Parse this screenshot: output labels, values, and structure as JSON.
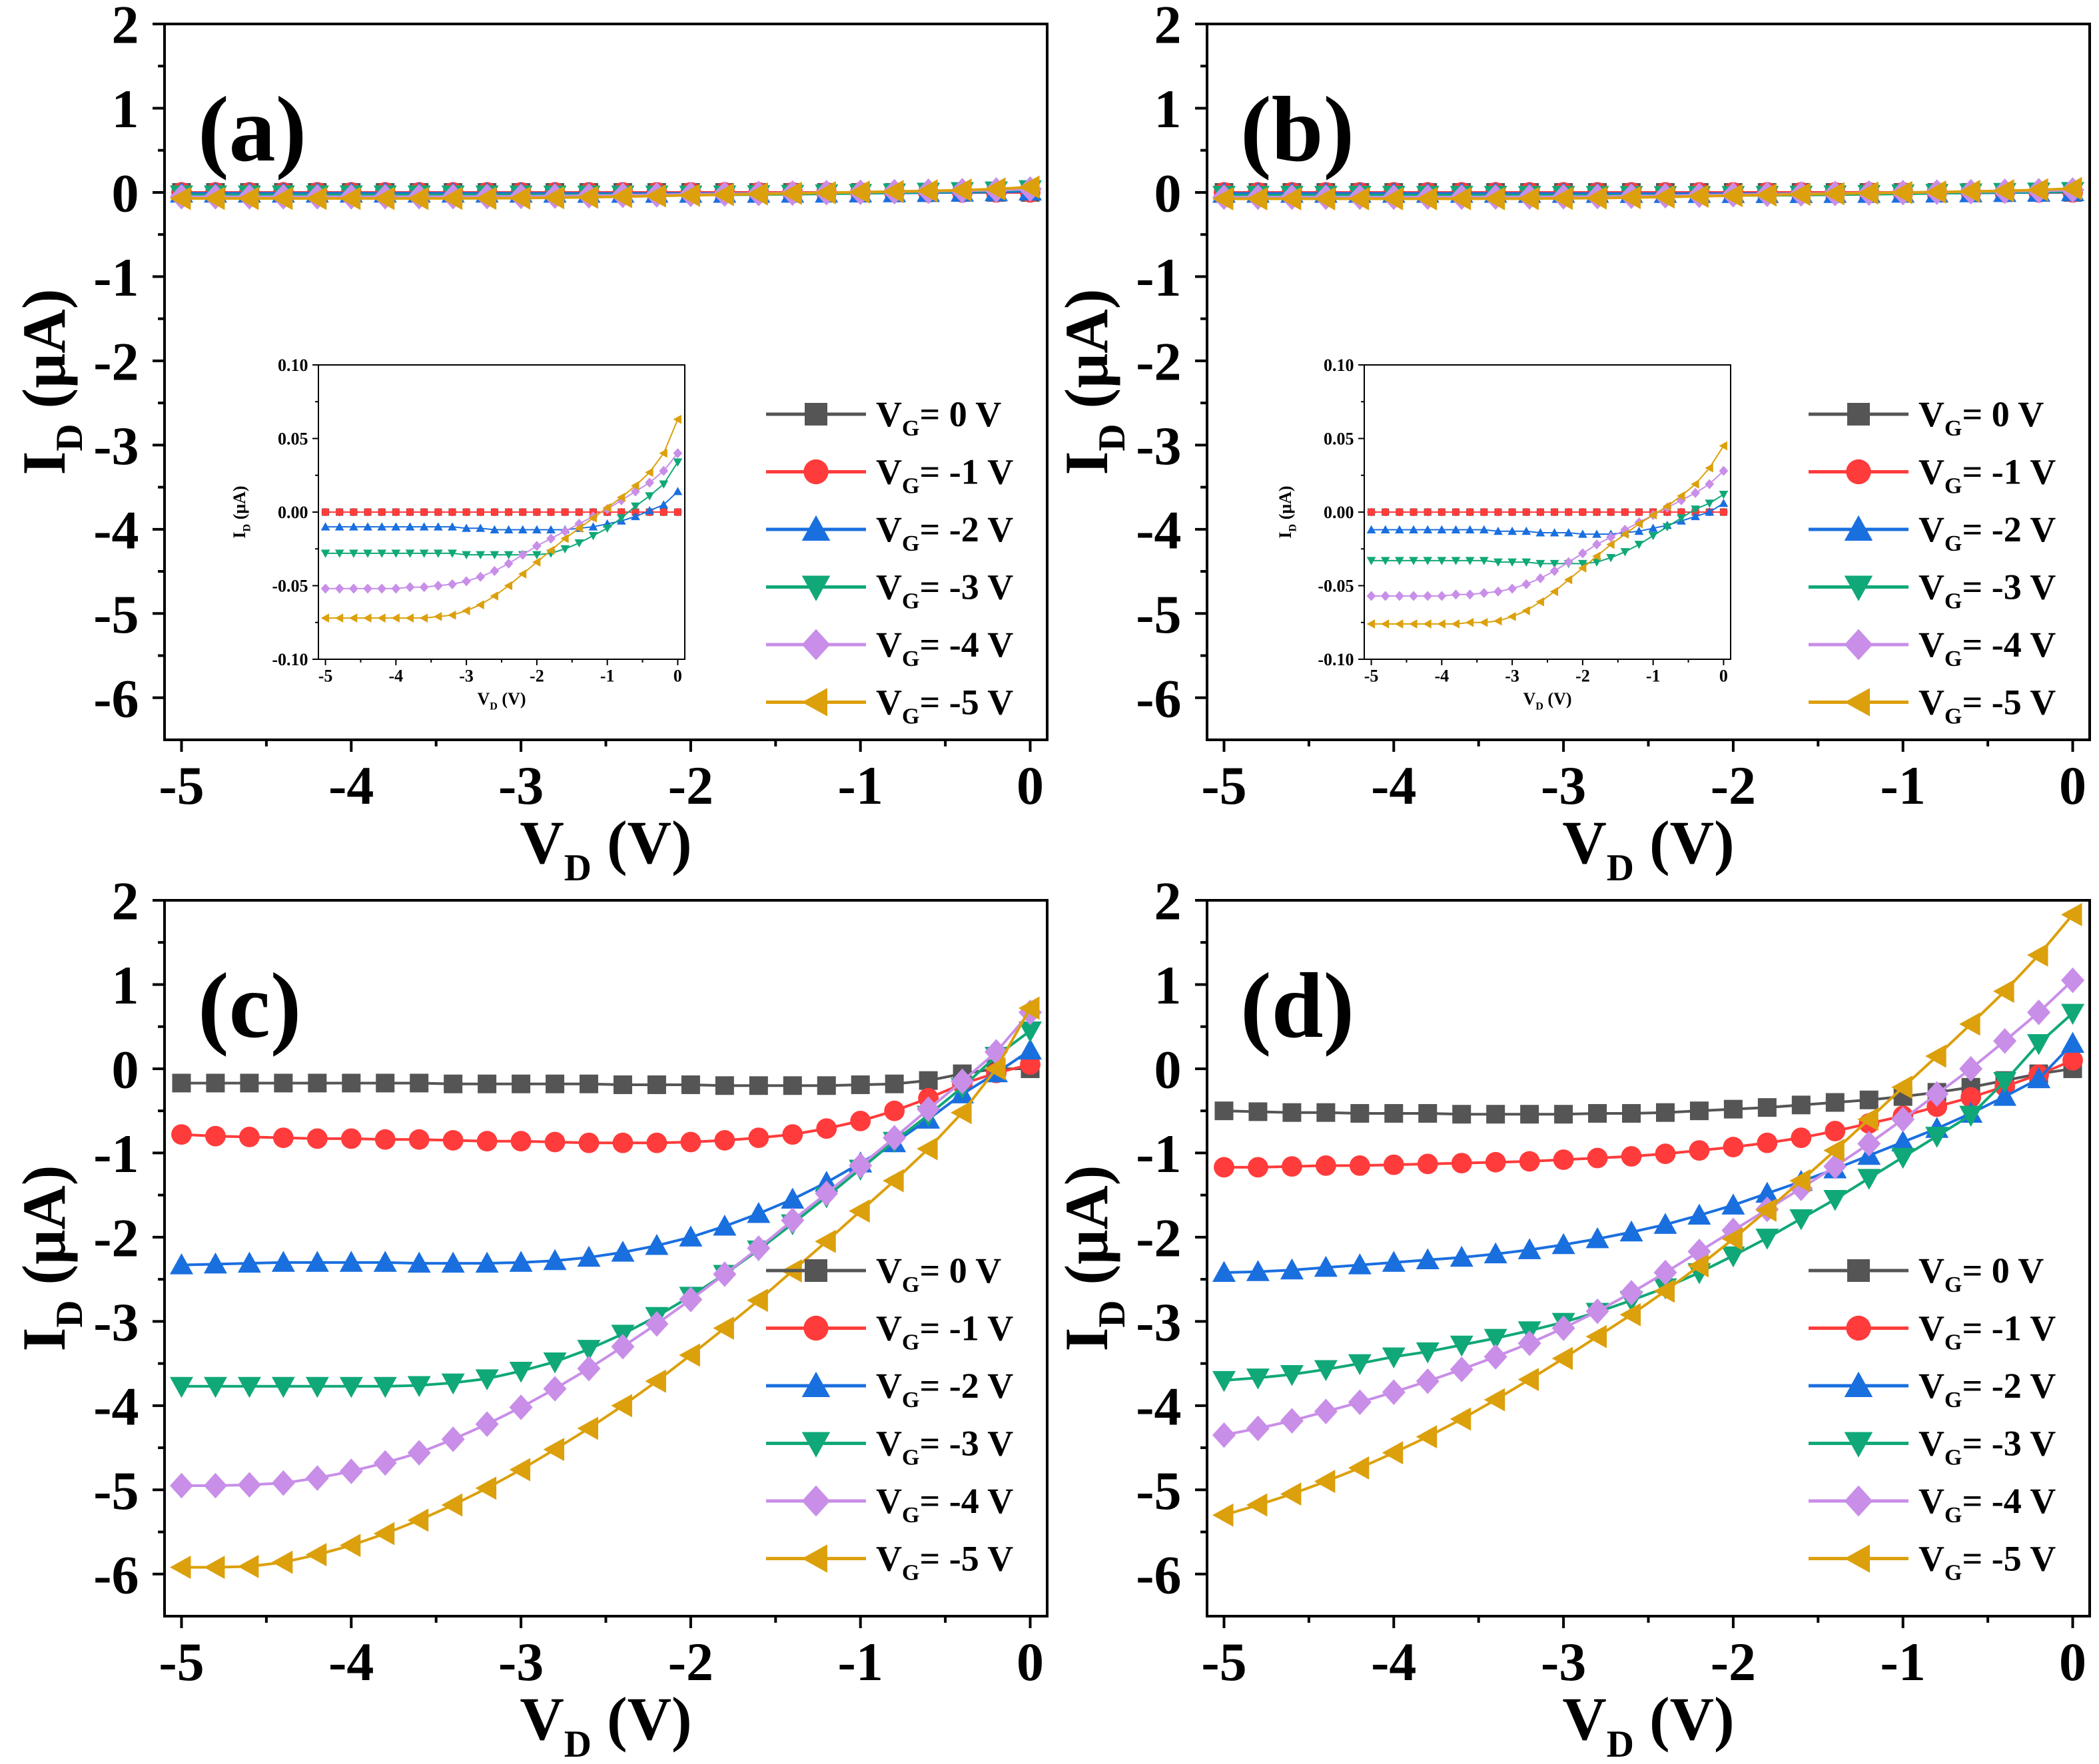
{
  "colors": {
    "black": "#555555",
    "red": "#ff3b3b",
    "blue": "#1a6fdf",
    "green": "#10a878",
    "purple": "#c88ee8",
    "orange": "#dca00c"
  },
  "legend": {
    "prefix": "V",
    "sub": "G",
    "entries": [
      "= 0 V",
      "= -1 V",
      "= -2 V",
      "= -3 V",
      "= -4 V",
      "= -5 V"
    ]
  },
  "chart_data": [
    {
      "type": "line",
      "panel": "(a)",
      "x": [
        -5.0,
        -4.8,
        -4.6,
        -4.4,
        -4.2,
        -4.0,
        -3.8,
        -3.6,
        -3.4,
        -3.2,
        -3.0,
        -2.8,
        -2.6,
        -2.4,
        -2.2,
        -2.0,
        -1.8,
        -1.6,
        -1.4,
        -1.2,
        -1.0,
        -0.8,
        -0.6,
        -0.4,
        -0.2,
        0.0
      ],
      "xlabel": {
        "main": "V",
        "sub": "D",
        "unit": " (V)"
      },
      "ylabel": {
        "main": "I",
        "sub": "D",
        "unit": " (μA)"
      },
      "xlim": [
        -5.1,
        0.1
      ],
      "ylim": [
        -6.5,
        2.0
      ],
      "xticks": [
        -5,
        -4,
        -3,
        -2,
        -1,
        0
      ],
      "yticks": [
        2,
        1,
        0,
        -1,
        -2,
        -3,
        -4,
        -5,
        -6
      ],
      "series": [
        {
          "name": "VG= 0 V",
          "values": [
            0,
            0,
            0,
            0,
            0,
            0,
            0,
            0,
            0,
            0,
            0,
            0,
            0,
            0,
            0,
            0,
            0,
            0,
            0,
            0,
            0,
            0,
            0,
            0,
            0,
            0
          ]
        },
        {
          "name": "VG= -1 V",
          "values": [
            0,
            0,
            0,
            0,
            0,
            0,
            0,
            0,
            0,
            0,
            0,
            0,
            0,
            0,
            0,
            0,
            0,
            0,
            0,
            0,
            0,
            0,
            0,
            0,
            0,
            0
          ]
        },
        {
          "name": "VG= -2 V",
          "values": [
            -0.01,
            -0.01,
            -0.01,
            -0.01,
            -0.01,
            -0.01,
            -0.01,
            -0.01,
            -0.01,
            -0.01,
            -0.011,
            -0.011,
            -0.012,
            -0.012,
            -0.012,
            -0.012,
            -0.012,
            -0.012,
            -0.011,
            -0.01,
            -0.008,
            -0.006,
            -0.003,
            0.001,
            0.005,
            0.014
          ]
        },
        {
          "name": "VG= -3 V",
          "values": [
            -0.028,
            -0.028,
            -0.028,
            -0.028,
            -0.028,
            -0.028,
            -0.028,
            -0.028,
            -0.028,
            -0.028,
            -0.029,
            -0.029,
            -0.029,
            -0.029,
            -0.029,
            -0.029,
            -0.028,
            -0.025,
            -0.021,
            -0.016,
            -0.011,
            -0.004,
            0.004,
            0.011,
            0.019,
            0.034
          ]
        },
        {
          "name": "VG= -4 V",
          "values": [
            -0.052,
            -0.052,
            -0.052,
            -0.052,
            -0.052,
            -0.052,
            -0.051,
            -0.051,
            -0.05,
            -0.049,
            -0.047,
            -0.044,
            -0.04,
            -0.035,
            -0.029,
            -0.023,
            -0.018,
            -0.013,
            -0.008,
            -0.003,
            0.002,
            0.008,
            0.014,
            0.02,
            0.028,
            0.04
          ]
        },
        {
          "name": "VG= -5 V",
          "values": [
            -0.072,
            -0.072,
            -0.072,
            -0.072,
            -0.072,
            -0.072,
            -0.072,
            -0.072,
            -0.071,
            -0.07,
            -0.067,
            -0.063,
            -0.057,
            -0.05,
            -0.042,
            -0.034,
            -0.026,
            -0.018,
            -0.011,
            -0.004,
            0.003,
            0.01,
            0.018,
            0.027,
            0.04,
            0.063
          ]
        }
      ],
      "inset": {
        "xlabel": {
          "main": "V",
          "sub": "D",
          "unit": " (V)"
        },
        "ylabel": {
          "main": "I",
          "sub": "D",
          "unit": " (μA)"
        },
        "xlim": [
          -5.1,
          0.1
        ],
        "ylim": [
          -0.1,
          0.1
        ],
        "xticks": [
          -5,
          -4,
          -3,
          -2,
          -1,
          0
        ],
        "yticks": [
          "0.10",
          "0.05",
          "0.00",
          "-0.05",
          "-0.10"
        ]
      }
    },
    {
      "type": "line",
      "panel": "(b)",
      "x": [
        -5.0,
        -4.8,
        -4.6,
        -4.4,
        -4.2,
        -4.0,
        -3.8,
        -3.6,
        -3.4,
        -3.2,
        -3.0,
        -2.8,
        -2.6,
        -2.4,
        -2.2,
        -2.0,
        -1.8,
        -1.6,
        -1.4,
        -1.2,
        -1.0,
        -0.8,
        -0.6,
        -0.4,
        -0.2,
        0.0
      ],
      "xlabel": {
        "main": "V",
        "sub": "D",
        "unit": " (V)"
      },
      "ylabel": {
        "main": "I",
        "sub": "D",
        "unit": " (μA)"
      },
      "xlim": [
        -5.1,
        0.1
      ],
      "ylim": [
        -6.5,
        2.0
      ],
      "xticks": [
        -5,
        -4,
        -3,
        -2,
        -1,
        0
      ],
      "yticks": [
        2,
        1,
        0,
        -1,
        -2,
        -3,
        -4,
        -5,
        -6
      ],
      "series": [
        {
          "name": "VG= 0 V",
          "values": [
            0,
            0,
            0,
            0,
            0,
            0,
            0,
            0,
            0,
            0,
            0,
            0,
            0,
            0,
            0,
            0,
            0,
            0,
            0,
            0,
            0,
            0,
            0,
            0,
            0,
            0
          ]
        },
        {
          "name": "VG= -1 V",
          "values": [
            0,
            0,
            0,
            0,
            0,
            0,
            0,
            0,
            0,
            0,
            0,
            0,
            0,
            0,
            0,
            0,
            0,
            0,
            0,
            0,
            0,
            0,
            0,
            0,
            0,
            0
          ]
        },
        {
          "name": "VG= -2 V",
          "values": [
            -0.012,
            -0.012,
            -0.012,
            -0.012,
            -0.012,
            -0.012,
            -0.012,
            -0.012,
            -0.012,
            -0.013,
            -0.013,
            -0.013,
            -0.014,
            -0.014,
            -0.014,
            -0.015,
            -0.015,
            -0.015,
            -0.014,
            -0.013,
            -0.011,
            -0.009,
            -0.006,
            -0.003,
            0.0,
            0.006
          ]
        },
        {
          "name": "VG= -3 V",
          "values": [
            -0.033,
            -0.033,
            -0.033,
            -0.033,
            -0.033,
            -0.033,
            -0.033,
            -0.033,
            -0.033,
            -0.034,
            -0.034,
            -0.034,
            -0.035,
            -0.035,
            -0.035,
            -0.035,
            -0.034,
            -0.031,
            -0.027,
            -0.022,
            -0.016,
            -0.01,
            -0.004,
            0.002,
            0.006,
            0.012
          ]
        },
        {
          "name": "VG= -4 V",
          "values": [
            -0.057,
            -0.057,
            -0.057,
            -0.057,
            -0.057,
            -0.057,
            -0.056,
            -0.056,
            -0.055,
            -0.054,
            -0.052,
            -0.049,
            -0.045,
            -0.04,
            -0.034,
            -0.028,
            -0.022,
            -0.017,
            -0.012,
            -0.007,
            -0.002,
            0.003,
            0.008,
            0.013,
            0.019,
            0.028
          ]
        },
        {
          "name": "VG= -5 V",
          "values": [
            -0.076,
            -0.076,
            -0.076,
            -0.076,
            -0.076,
            -0.076,
            -0.076,
            -0.075,
            -0.075,
            -0.074,
            -0.071,
            -0.067,
            -0.061,
            -0.054,
            -0.046,
            -0.038,
            -0.03,
            -0.022,
            -0.015,
            -0.008,
            -0.002,
            0.004,
            0.011,
            0.019,
            0.03,
            0.045
          ]
        }
      ],
      "inset": {
        "xlabel": {
          "main": "V",
          "sub": "D",
          "unit": " (V)"
        },
        "ylabel": {
          "main": "I",
          "sub": "D",
          "unit": " (μA)"
        },
        "xlim": [
          -5.1,
          0.1
        ],
        "ylim": [
          -0.1,
          0.1
        ],
        "xticks": [
          -5,
          -4,
          -3,
          -2,
          -1,
          0
        ],
        "yticks": [
          "0.10",
          "0.05",
          "0.00",
          "-0.05",
          "-0.10"
        ]
      }
    },
    {
      "type": "line",
      "panel": "(c)",
      "x": [
        -5.0,
        -4.8,
        -4.6,
        -4.4,
        -4.2,
        -4.0,
        -3.8,
        -3.6,
        -3.4,
        -3.2,
        -3.0,
        -2.8,
        -2.6,
        -2.4,
        -2.2,
        -2.0,
        -1.8,
        -1.6,
        -1.4,
        -1.2,
        -1.0,
        -0.8,
        -0.6,
        -0.4,
        -0.2,
        0.0
      ],
      "xlabel": {
        "main": "V",
        "sub": "D",
        "unit": " (V)"
      },
      "ylabel": {
        "main": "I",
        "sub": "D",
        "unit": " (μA)"
      },
      "xlim": [
        -5.1,
        0.1
      ],
      "ylim": [
        -6.5,
        2.0
      ],
      "xticks": [
        -5,
        -4,
        -3,
        -2,
        -1,
        0
      ],
      "yticks": [
        2,
        1,
        0,
        -1,
        -2,
        -3,
        -4,
        -5,
        -6
      ],
      "series": [
        {
          "name": "VG= 0 V",
          "values": [
            -0.17,
            -0.17,
            -0.17,
            -0.17,
            -0.17,
            -0.17,
            -0.17,
            -0.17,
            -0.18,
            -0.18,
            -0.18,
            -0.18,
            -0.18,
            -0.19,
            -0.19,
            -0.19,
            -0.2,
            -0.2,
            -0.2,
            -0.2,
            -0.19,
            -0.18,
            -0.14,
            -0.06,
            0.0,
            0.0
          ]
        },
        {
          "name": "VG= -1 V",
          "values": [
            -0.78,
            -0.8,
            -0.81,
            -0.82,
            -0.83,
            -0.83,
            -0.84,
            -0.84,
            -0.85,
            -0.86,
            -0.86,
            -0.87,
            -0.88,
            -0.88,
            -0.88,
            -0.87,
            -0.85,
            -0.82,
            -0.78,
            -0.71,
            -0.62,
            -0.5,
            -0.35,
            -0.18,
            -0.05,
            0.05
          ]
        },
        {
          "name": "VG= -2 V",
          "values": [
            -2.33,
            -2.32,
            -2.31,
            -2.3,
            -2.3,
            -2.3,
            -2.3,
            -2.31,
            -2.31,
            -2.31,
            -2.3,
            -2.28,
            -2.24,
            -2.18,
            -2.1,
            -2.0,
            -1.87,
            -1.72,
            -1.55,
            -1.35,
            -1.12,
            -0.88,
            -0.6,
            -0.3,
            -0.05,
            0.22
          ]
        },
        {
          "name": "VG= -3 V",
          "values": [
            -3.77,
            -3.77,
            -3.77,
            -3.77,
            -3.77,
            -3.77,
            -3.77,
            -3.76,
            -3.73,
            -3.68,
            -3.59,
            -3.48,
            -3.33,
            -3.15,
            -2.94,
            -2.7,
            -2.44,
            -2.15,
            -1.84,
            -1.52,
            -1.19,
            -0.86,
            -0.55,
            -0.22,
            0.15,
            0.45
          ]
        },
        {
          "name": "VG= -4 V",
          "values": [
            -4.95,
            -4.95,
            -4.94,
            -4.92,
            -4.86,
            -4.78,
            -4.68,
            -4.56,
            -4.4,
            -4.22,
            -4.02,
            -3.8,
            -3.56,
            -3.3,
            -3.03,
            -2.74,
            -2.44,
            -2.13,
            -1.8,
            -1.48,
            -1.15,
            -0.82,
            -0.48,
            -0.15,
            0.2,
            0.67
          ]
        },
        {
          "name": "VG= -5 V",
          "values": [
            -5.92,
            -5.92,
            -5.91,
            -5.86,
            -5.77,
            -5.66,
            -5.52,
            -5.36,
            -5.18,
            -4.98,
            -4.76,
            -4.52,
            -4.27,
            -4.0,
            -3.71,
            -3.4,
            -3.08,
            -2.75,
            -2.4,
            -2.05,
            -1.69,
            -1.33,
            -0.95,
            -0.52,
            0.0,
            0.72
          ]
        }
      ]
    },
    {
      "type": "line",
      "panel": "(d)",
      "x": [
        -5.0,
        -4.8,
        -4.6,
        -4.4,
        -4.2,
        -4.0,
        -3.8,
        -3.6,
        -3.4,
        -3.2,
        -3.0,
        -2.8,
        -2.6,
        -2.4,
        -2.2,
        -2.0,
        -1.8,
        -1.6,
        -1.4,
        -1.2,
        -1.0,
        -0.8,
        -0.6,
        -0.4,
        -0.2,
        0.0
      ],
      "xlabel": {
        "main": "V",
        "sub": "D",
        "unit": " (V)"
      },
      "ylabel": {
        "main": "I",
        "sub": "D",
        "unit": " (μA)"
      },
      "xlim": [
        -5.1,
        0.1
      ],
      "ylim": [
        -6.5,
        2.0
      ],
      "xticks": [
        -5,
        -4,
        -3,
        -2,
        -1,
        0
      ],
      "yticks": [
        2,
        1,
        0,
        -1,
        -2,
        -3,
        -4,
        -5,
        -6
      ],
      "series": [
        {
          "name": "VG= 0 V",
          "values": [
            -0.5,
            -0.51,
            -0.52,
            -0.52,
            -0.53,
            -0.53,
            -0.53,
            -0.54,
            -0.54,
            -0.54,
            -0.54,
            -0.53,
            -0.53,
            -0.52,
            -0.5,
            -0.48,
            -0.46,
            -0.43,
            -0.4,
            -0.37,
            -0.33,
            -0.28,
            -0.22,
            -0.14,
            -0.06,
            0.0
          ]
        },
        {
          "name": "VG= -1 V",
          "values": [
            -1.17,
            -1.17,
            -1.16,
            -1.15,
            -1.15,
            -1.14,
            -1.13,
            -1.12,
            -1.11,
            -1.1,
            -1.08,
            -1.06,
            -1.04,
            -1.01,
            -0.97,
            -0.93,
            -0.88,
            -0.82,
            -0.74,
            -0.65,
            -0.56,
            -0.45,
            -0.34,
            -0.21,
            -0.07,
            0.1
          ]
        },
        {
          "name": "VG= -2 V",
          "values": [
            -2.42,
            -2.41,
            -2.39,
            -2.36,
            -2.33,
            -2.3,
            -2.27,
            -2.24,
            -2.2,
            -2.15,
            -2.09,
            -2.02,
            -1.94,
            -1.85,
            -1.74,
            -1.62,
            -1.48,
            -1.34,
            -1.19,
            -1.03,
            -0.87,
            -0.71,
            -0.53,
            -0.33,
            -0.12,
            0.3
          ]
        },
        {
          "name": "VG= -3 V",
          "values": [
            -3.7,
            -3.67,
            -3.63,
            -3.57,
            -3.5,
            -3.42,
            -3.36,
            -3.28,
            -3.2,
            -3.11,
            -3.01,
            -2.89,
            -2.75,
            -2.6,
            -2.42,
            -2.22,
            -2.01,
            -1.78,
            -1.55,
            -1.3,
            -1.05,
            -0.8,
            -0.55,
            -0.15,
            0.3,
            0.66
          ]
        },
        {
          "name": "VG= -4 V",
          "values": [
            -4.35,
            -4.27,
            -4.18,
            -4.07,
            -3.96,
            -3.84,
            -3.71,
            -3.57,
            -3.42,
            -3.26,
            -3.08,
            -2.88,
            -2.66,
            -2.42,
            -2.17,
            -1.92,
            -1.67,
            -1.42,
            -1.16,
            -0.89,
            -0.6,
            -0.3,
            0.0,
            0.33,
            0.67,
            1.05
          ]
        },
        {
          "name": "VG= -5 V",
          "values": [
            -5.3,
            -5.18,
            -5.05,
            -4.9,
            -4.74,
            -4.56,
            -4.37,
            -4.16,
            -3.93,
            -3.69,
            -3.44,
            -3.18,
            -2.92,
            -2.64,
            -2.34,
            -2.02,
            -1.68,
            -1.33,
            -0.97,
            -0.6,
            -0.22,
            0.15,
            0.53,
            0.92,
            1.35,
            1.83
          ]
        }
      ]
    }
  ]
}
